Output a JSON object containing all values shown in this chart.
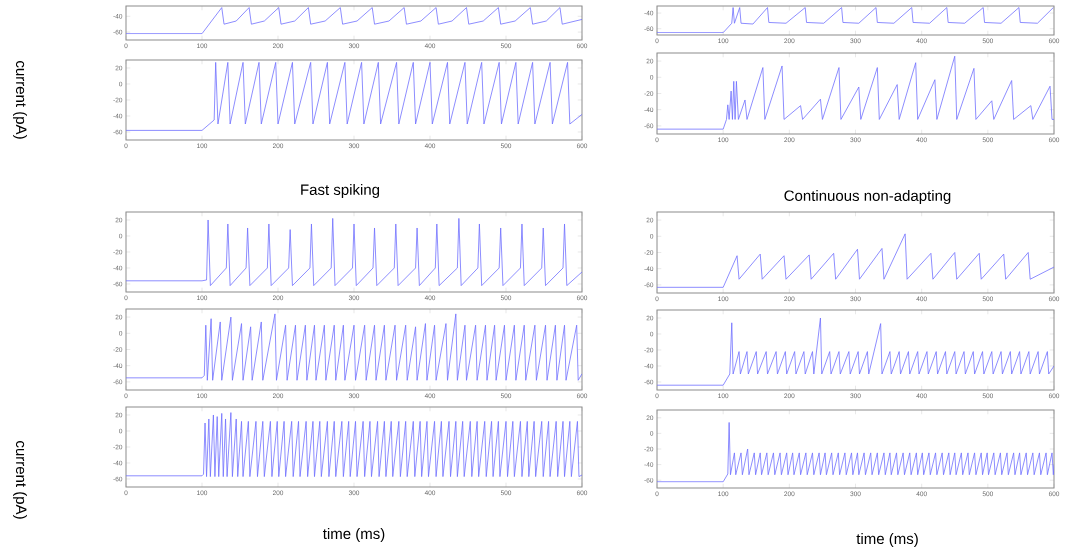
{
  "chart_data": [
    {
      "type": "line",
      "color": "#7070ff",
      "xlim": [
        0,
        600
      ],
      "ylim": [
        -70,
        -27
      ],
      "xticks": [
        0,
        100,
        200,
        300,
        400,
        500,
        600
      ],
      "yticks": [
        -60,
        -40
      ],
      "x": [
        0,
        100,
        126,
        129,
        145,
        162,
        165,
        182,
        201,
        204,
        222,
        240,
        243,
        262,
        282,
        285,
        304,
        324,
        327,
        346,
        366,
        369,
        388,
        408,
        411,
        429,
        448,
        451,
        470,
        490,
        493,
        512,
        532,
        535,
        553,
        571,
        574,
        600
      ],
      "values": [
        -62,
        -62,
        -29,
        -50,
        -46,
        -29,
        -50,
        -46,
        -29,
        -50,
        -46,
        -29,
        -50,
        -46,
        -29,
        -50,
        -46,
        -29,
        -50,
        -46,
        -29,
        -50,
        -46,
        -29,
        -50,
        -46,
        -29,
        -50,
        -46,
        -29,
        -50,
        -46,
        -29,
        -50,
        -46,
        -29,
        -50,
        -44
      ]
    },
    {
      "type": "line",
      "color": "#7070ff",
      "xlim": [
        0,
        600
      ],
      "ylim": [
        -68,
        -31
      ],
      "xticks": [
        0,
        100,
        200,
        300,
        400,
        500,
        600
      ],
      "yticks": [
        -60,
        -40
      ],
      "x": [
        0,
        100,
        113,
        115,
        117,
        125,
        127,
        145,
        167,
        169,
        195,
        224,
        226,
        252,
        279,
        281,
        305,
        331,
        333,
        358,
        385,
        387,
        412,
        438,
        440,
        465,
        493,
        495,
        520,
        547,
        549,
        575,
        599
      ],
      "values": [
        -65,
        -65,
        -53,
        -33,
        -53,
        -33,
        -53,
        -54,
        -33,
        -52,
        -53,
        -33,
        -52,
        -53,
        -33,
        -52,
        -53,
        -33,
        -52,
        -53,
        -33,
        -52,
        -53,
        -33,
        -52,
        -53,
        -33,
        -52,
        -53,
        -33,
        -52,
        -53,
        -33
      ]
    },
    {
      "type": "line",
      "color": "#7070ff",
      "ylabel": "current (pA)",
      "xlim": [
        0,
        600
      ],
      "ylim": [
        -70,
        30
      ],
      "xticks": [
        0,
        100,
        200,
        300,
        400,
        500,
        600
      ],
      "yticks": [
        -60,
        -40,
        -20,
        0,
        20
      ],
      "x": [
        0,
        100,
        116,
        118,
        121,
        134,
        137,
        154,
        157,
        175,
        178,
        197,
        200,
        219,
        222,
        243,
        246,
        265,
        268,
        288,
        291,
        310,
        313,
        332,
        335,
        356,
        359,
        378,
        381,
        400,
        403,
        423,
        426,
        446,
        449,
        468,
        471,
        491,
        494,
        513,
        516,
        535,
        538,
        558,
        561,
        581,
        584,
        600
      ],
      "values": [
        -58,
        -58,
        -45,
        27,
        -50,
        27,
        -50,
        27,
        -50,
        27,
        -50,
        27,
        -50,
        27,
        -50,
        27,
        -50,
        27,
        -50,
        27,
        -50,
        27,
        -50,
        27,
        -50,
        27,
        -50,
        27,
        -50,
        27,
        -50,
        27,
        -50,
        27,
        -50,
        27,
        -50,
        27,
        -50,
        27,
        -50,
        27,
        -50,
        27,
        -50,
        27,
        -50,
        -38
      ]
    },
    {
      "type": "line",
      "color": "#7070ff",
      "xlim": [
        0,
        600
      ],
      "ylim": [
        -70,
        30
      ],
      "xticks": [
        0,
        100,
        200,
        300,
        400,
        500,
        600
      ],
      "yticks": [
        -60,
        -40,
        -20,
        0,
        20
      ],
      "x": [
        0,
        100,
        105,
        107,
        109,
        112,
        114,
        116,
        118,
        120,
        123,
        133,
        136,
        160,
        163,
        189,
        192,
        217,
        220,
        247,
        250,
        275,
        278,
        305,
        308,
        333,
        336,
        363,
        366,
        391,
        394,
        420,
        423,
        450,
        453,
        479,
        482,
        506,
        509,
        536,
        539,
        565,
        568,
        594,
        597,
        600
      ],
      "values": [
        -64,
        -64,
        -52,
        -34,
        -52,
        -17,
        -52,
        -5,
        -52,
        -5,
        -52,
        -28,
        -52,
        12,
        -52,
        14,
        -52,
        -35,
        -52,
        -27,
        -52,
        12,
        -52,
        -12,
        -52,
        12,
        -52,
        -9,
        -52,
        18,
        -52,
        -3,
        -52,
        26,
        -52,
        11,
        -52,
        -29,
        -52,
        -4,
        -52,
        -35,
        -52,
        -11,
        -52,
        -52
      ]
    },
    {
      "type": "line",
      "color": "#7070ff",
      "title": "Fast spiking",
      "xlim": [
        0,
        600
      ],
      "ylim": [
        -70,
        30
      ],
      "xticks": [
        0,
        100,
        200,
        300,
        400,
        500,
        600
      ],
      "yticks": [
        -60,
        -40,
        -20,
        0,
        20
      ],
      "x": [
        0,
        100,
        106,
        108,
        111,
        132,
        134,
        137,
        158,
        160,
        163,
        186,
        188,
        191,
        214,
        216,
        219,
        242,
        244,
        247,
        270,
        272,
        275,
        298,
        300,
        303,
        325,
        327,
        330,
        353,
        355,
        358,
        381,
        383,
        386,
        407,
        409,
        412,
        436,
        438,
        441,
        463,
        465,
        468,
        491,
        493,
        496,
        519,
        521,
        524,
        547,
        549,
        552,
        575,
        577,
        580,
        600
      ],
      "values": [
        -56,
        -56,
        -55,
        20,
        -62,
        -40,
        15,
        -62,
        -40,
        10,
        -62,
        -40,
        15,
        -62,
        -40,
        8,
        -62,
        -40,
        15,
        -62,
        -40,
        22,
        -62,
        -40,
        15,
        -62,
        -40,
        10,
        -62,
        -40,
        15,
        -62,
        -40,
        10,
        -62,
        -40,
        15,
        -62,
        -40,
        22,
        -62,
        -40,
        15,
        -62,
        -40,
        10,
        -62,
        -40,
        15,
        -62,
        -40,
        10,
        -62,
        -40,
        15,
        -62,
        -45
      ]
    },
    {
      "type": "line",
      "color": "#7070ff",
      "title": "Continuous non-adapting",
      "xlim": [
        0,
        600
      ],
      "ylim": [
        -70,
        30
      ],
      "xticks": [
        0,
        100,
        200,
        300,
        400,
        500,
        600
      ],
      "yticks": [
        -60,
        -40,
        -20,
        0,
        20
      ],
      "x": [
        0,
        100,
        121,
        124,
        156,
        159,
        192,
        195,
        230,
        233,
        267,
        270,
        303,
        306,
        340,
        343,
        375,
        378,
        414,
        417,
        450,
        453,
        487,
        490,
        524,
        527,
        561,
        564,
        600
      ],
      "values": [
        -63,
        -63,
        -24,
        -53,
        -22,
        -53,
        -24,
        -53,
        -23,
        -53,
        -21,
        -53,
        -16,
        -53,
        -15,
        -53,
        3,
        -53,
        -21,
        -53,
        -20,
        -53,
        -21,
        -53,
        -22,
        -53,
        -20,
        -53,
        -38
      ]
    },
    {
      "type": "line",
      "color": "#7070ff",
      "xlim": [
        0,
        600
      ],
      "ylim": [
        -70,
        30
      ],
      "xticks": [
        0,
        100,
        200,
        300,
        400,
        500,
        600
      ],
      "yticks": [
        -60,
        -40,
        -20,
        0,
        20
      ],
      "x": [
        0,
        100,
        103,
        105,
        107,
        112,
        114,
        124,
        126,
        138,
        140,
        152,
        154,
        164,
        166,
        178,
        180,
        196,
        198,
        210,
        212,
        223,
        225,
        236,
        238,
        248,
        250,
        261,
        263,
        274,
        276,
        286,
        288,
        300,
        302,
        314,
        316,
        327,
        329,
        340,
        342,
        354,
        356,
        368,
        370,
        381,
        383,
        394,
        396,
        406,
        408,
        421,
        423,
        434,
        436,
        446,
        448,
        460,
        462,
        473,
        475,
        485,
        487,
        498,
        500,
        511,
        513,
        524,
        526,
        538,
        540,
        552,
        554,
        565,
        567,
        577,
        579,
        593,
        595,
        600
      ],
      "values": [
        -55,
        -55,
        -52,
        10,
        -58,
        18,
        -58,
        14,
        -58,
        20,
        -58,
        12,
        -58,
        8,
        -58,
        14,
        -58,
        24,
        -58,
        10,
        -58,
        10,
        -58,
        10,
        -58,
        10,
        -58,
        10,
        -58,
        10,
        -58,
        10,
        -58,
        10,
        -58,
        10,
        -58,
        10,
        -58,
        10,
        -58,
        10,
        -58,
        10,
        -58,
        8,
        -58,
        12,
        -58,
        10,
        -58,
        12,
        -58,
        24,
        -58,
        10,
        -58,
        10,
        -58,
        10,
        -58,
        10,
        -58,
        10,
        -58,
        10,
        -58,
        10,
        -58,
        10,
        -58,
        10,
        -58,
        10,
        -58,
        10,
        -58,
        10,
        -58,
        -50
      ]
    },
    {
      "type": "line",
      "color": "#7070ff",
      "xlim": [
        0,
        600
      ],
      "ylim": [
        -70,
        30
      ],
      "xticks": [
        0,
        100,
        200,
        300,
        400,
        500,
        600
      ],
      "yticks": [
        -60,
        -40,
        -20,
        0,
        20
      ],
      "x": [
        0,
        100,
        110,
        113,
        115,
        124,
        126,
        136,
        138,
        150,
        152,
        165,
        167,
        180,
        182,
        194,
        196,
        208,
        210,
        222,
        224,
        235,
        237,
        247,
        249,
        261,
        263,
        275,
        277,
        290,
        292,
        304,
        306,
        318,
        320,
        338,
        340,
        352,
        354,
        366,
        368,
        380,
        382,
        394,
        396,
        408,
        410,
        422,
        424,
        436,
        438,
        450,
        452,
        464,
        466,
        478,
        480,
        492,
        494,
        506,
        508,
        520,
        522,
        534,
        536,
        548,
        550,
        562,
        564,
        576,
        578,
        590,
        592,
        600
      ],
      "values": [
        -64,
        -64,
        -50,
        14,
        -50,
        -22,
        -50,
        -22,
        -50,
        -22,
        -50,
        -22,
        -50,
        -22,
        -50,
        -22,
        -50,
        -22,
        -50,
        -22,
        -50,
        -22,
        -50,
        20,
        -50,
        -22,
        -50,
        -22,
        -50,
        -22,
        -50,
        -22,
        -50,
        -22,
        -50,
        13,
        -50,
        -22,
        -50,
        -22,
        -50,
        -22,
        -50,
        -22,
        -50,
        -22,
        -50,
        -22,
        -50,
        -22,
        -50,
        -22,
        -50,
        -22,
        -50,
        -22,
        -50,
        -22,
        -50,
        -22,
        -50,
        -22,
        -50,
        -22,
        -50,
        -22,
        -50,
        -22,
        -50,
        -22,
        -50,
        -22,
        -50,
        -40
      ]
    },
    {
      "type": "line",
      "color": "#7070ff",
      "ylabel": "current (pA)",
      "xlabel": "time (ms)",
      "xlim": [
        0,
        600
      ],
      "ylim": [
        -70,
        30
      ],
      "xticks": [
        0,
        100,
        200,
        300,
        400,
        500,
        600
      ],
      "yticks": [
        -60,
        -40,
        -20,
        0,
        20
      ],
      "x": [
        0,
        100,
        102,
        104,
        106,
        109,
        111,
        115,
        117,
        120,
        122,
        126,
        128,
        131,
        133,
        138,
        140,
        145,
        147,
        152,
        154,
        161,
        163,
        171,
        173,
        180,
        182,
        190,
        192,
        199,
        201,
        208,
        210,
        218,
        220,
        227,
        229,
        237,
        239,
        246,
        248,
        255,
        257,
        265,
        267,
        274,
        276,
        284,
        286,
        293,
        295,
        302,
        304,
        312,
        314,
        321,
        323,
        331,
        333,
        340,
        342,
        349,
        351,
        359,
        361,
        368,
        370,
        378,
        380,
        387,
        389,
        396,
        398,
        406,
        408,
        415,
        417,
        425,
        427,
        434,
        436,
        443,
        445,
        453,
        455,
        462,
        464,
        472,
        474,
        481,
        483,
        490,
        492,
        500,
        502,
        509,
        511,
        519,
        521,
        528,
        530,
        537,
        539,
        547,
        549,
        556,
        558,
        566,
        568,
        575,
        577,
        584,
        586,
        594,
        596,
        600
      ],
      "values": [
        -56,
        -56,
        -54,
        10,
        -57,
        15,
        -57,
        20,
        -57,
        18,
        -57,
        22,
        -57,
        15,
        -57,
        23,
        -57,
        15,
        -57,
        12,
        -57,
        12,
        -57,
        12,
        -57,
        12,
        -57,
        12,
        -57,
        12,
        -57,
        12,
        -57,
        12,
        -57,
        12,
        -57,
        12,
        -57,
        12,
        -57,
        12,
        -57,
        12,
        -57,
        12,
        -57,
        12,
        -57,
        12,
        -57,
        12,
        -57,
        12,
        -57,
        12,
        -57,
        12,
        -57,
        12,
        -57,
        12,
        -57,
        12,
        -57,
        12,
        -57,
        12,
        -57,
        12,
        -57,
        12,
        -57,
        12,
        -57,
        12,
        -57,
        12,
        -57,
        12,
        -57,
        12,
        -57,
        12,
        -57,
        12,
        -57,
        12,
        -57,
        12,
        -57,
        12,
        -57,
        12,
        -57,
        12,
        -57,
        12,
        -57,
        12,
        -57,
        12,
        -57,
        12,
        -57,
        12,
        -57,
        12,
        -57,
        12,
        -57,
        12,
        -57,
        12,
        -57,
        -55
      ]
    },
    {
      "type": "line",
      "color": "#7070ff",
      "xlabel": "time (ms)",
      "xlim": [
        0,
        600
      ],
      "ylim": [
        -70,
        30
      ],
      "xticks": [
        0,
        100,
        200,
        300,
        400,
        500,
        600
      ],
      "yticks": [
        -60,
        -40,
        -20,
        0,
        20
      ],
      "x": [
        0,
        100,
        107,
        109,
        111,
        117,
        119,
        127,
        129,
        137,
        139,
        147,
        149,
        156,
        158,
        166,
        168,
        176,
        178,
        186,
        188,
        196,
        198,
        205,
        207,
        215,
        217,
        225,
        227,
        235,
        237,
        245,
        247,
        254,
        256,
        264,
        266,
        274,
        276,
        284,
        286,
        294,
        296,
        303,
        305,
        313,
        315,
        323,
        325,
        333,
        335,
        343,
        345,
        352,
        354,
        362,
        364,
        372,
        374,
        382,
        384,
        392,
        394,
        401,
        403,
        411,
        413,
        421,
        423,
        431,
        433,
        441,
        443,
        450,
        452,
        460,
        462,
        470,
        472,
        480,
        482,
        490,
        492,
        499,
        501,
        509,
        511,
        519,
        521,
        529,
        531,
        539,
        541,
        548,
        550,
        558,
        560,
        568,
        570,
        578,
        580,
        588,
        590,
        597,
        599,
        600
      ],
      "values": [
        -62,
        -62,
        -52,
        14,
        -53,
        -25,
        -53,
        -25,
        -53,
        -20,
        -53,
        -25,
        -53,
        -25,
        -53,
        -25,
        -53,
        -25,
        -53,
        -25,
        -53,
        -25,
        -53,
        -25,
        -53,
        -25,
        -53,
        -25,
        -53,
        -25,
        -53,
        -25,
        -53,
        -25,
        -53,
        -25,
        -53,
        -25,
        -53,
        -25,
        -53,
        -25,
        -53,
        -25,
        -53,
        -25,
        -53,
        -25,
        -53,
        -25,
        -53,
        -25,
        -53,
        -25,
        -53,
        -25,
        -53,
        -25,
        -53,
        -25,
        -53,
        -25,
        -53,
        -25,
        -53,
        -25,
        -53,
        -25,
        -53,
        -25,
        -53,
        -25,
        -53,
        -25,
        -53,
        -25,
        -53,
        -25,
        -53,
        -25,
        -53,
        -25,
        -53,
        -25,
        -53,
        -25,
        -53,
        -25,
        -53,
        -25,
        -53,
        -25,
        -53,
        -25,
        -53,
        -25,
        -53,
        -25,
        -53,
        -25,
        -53,
        -25,
        -53,
        -25,
        -53,
        -40
      ]
    }
  ]
}
